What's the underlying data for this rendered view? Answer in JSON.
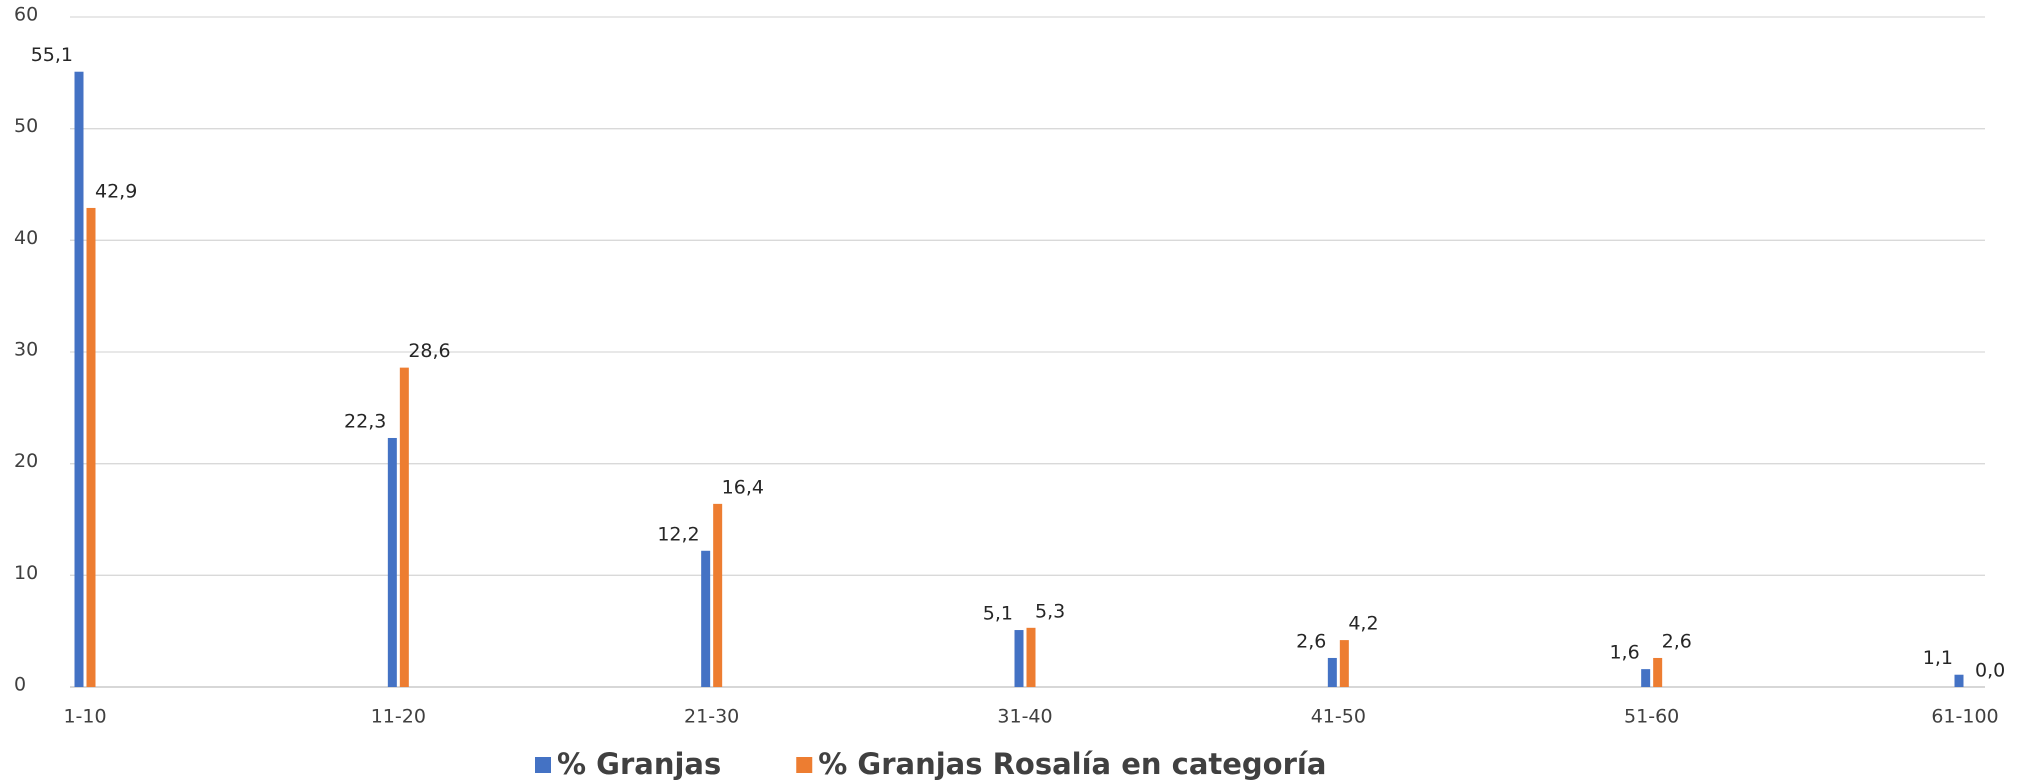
{
  "chart_data": {
    "type": "bar",
    "categories": [
      "1-10",
      "11-20",
      "21-30",
      "31-40",
      "41-50",
      "51-60",
      "61-100"
    ],
    "series": [
      {
        "name": "% Granjas",
        "color": "#4472c4",
        "values": [
          55.1,
          22.3,
          12.2,
          5.1,
          2.6,
          1.6,
          1.1
        ],
        "value_labels": [
          "55,1",
          "22,3",
          "12,2",
          "5,1",
          "2,6",
          "1,6",
          "1,1"
        ]
      },
      {
        "name": "% Granjas Rosalía en categoría",
        "color": "#ed7d31",
        "values": [
          42.9,
          28.6,
          16.4,
          5.3,
          4.2,
          2.6,
          0.0
        ],
        "value_labels": [
          "42,9",
          "28,6",
          "16,4",
          "5,3",
          "4,2",
          "2,6",
          "0,0"
        ]
      }
    ],
    "ylim": [
      0,
      60
    ],
    "yticks": [
      0,
      10,
      20,
      30,
      40,
      50,
      60
    ],
    "grid": true,
    "legend": "bottom"
  }
}
